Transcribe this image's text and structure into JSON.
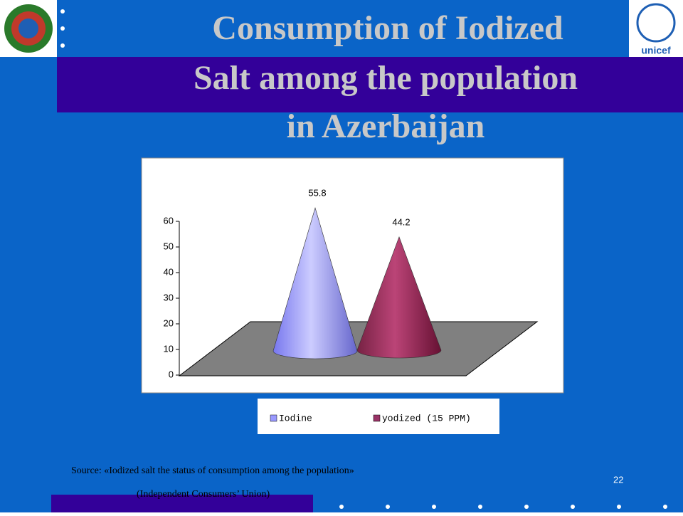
{
  "slide": {
    "title_lines": [
      "Consumption of Iodized",
      "Salt among the population",
      "in Azerbaijan"
    ],
    "source": "Source: «Iodized salt the status of consumption among the population»",
    "source_org": "(Independent Consumers’ Union)",
    "page_number": "22"
  },
  "chart_data": {
    "type": "cone",
    "series": [
      {
        "name": "Iodine",
        "color": "#9999ff",
        "values": [
          55.8
        ]
      },
      {
        "name": "yodized (15 PPM)",
        "color": "#993366",
        "values": [
          44.2
        ]
      }
    ],
    "ylim": [
      0,
      60
    ],
    "yticks": [
      0,
      10,
      20,
      30,
      40,
      50,
      60
    ]
  }
}
